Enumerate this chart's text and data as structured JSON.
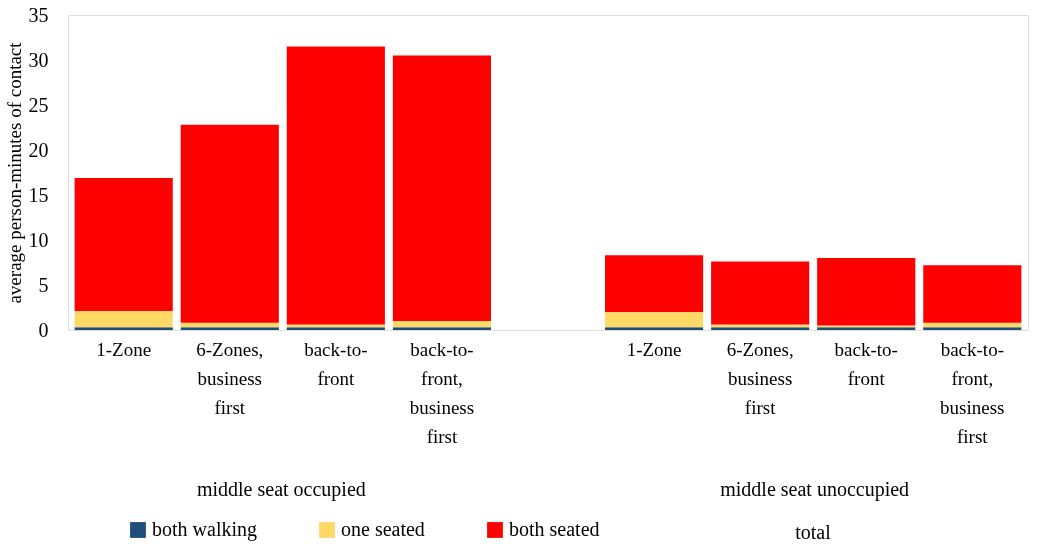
{
  "chart_data": {
    "type": "bar",
    "stacked": true,
    "ylabel": "average person-minutes of contact",
    "categories": [
      "1-Zone",
      "6-Zones, business first",
      "back-to-front",
      "back-to-front, business first",
      null,
      "1-Zone",
      "6-Zones, business first",
      "back-to-front",
      "back-to-front, business first"
    ],
    "series": [
      {
        "name": "both walking",
        "color": "#1f4e79",
        "values": [
          0.3,
          0.3,
          0.3,
          0.3,
          null,
          0.3,
          0.3,
          0.3,
          0.3
        ]
      },
      {
        "name": "one seated",
        "color": "#ffd966",
        "values": [
          1.8,
          0.5,
          0.3,
          0.7,
          null,
          1.7,
          0.3,
          0.2,
          0.5
        ]
      },
      {
        "name": "both seated",
        "color": "#ff0000",
        "values": [
          14.8,
          22.0,
          30.9,
          29.5,
          null,
          6.3,
          7.0,
          7.5,
          6.4
        ]
      }
    ],
    "ylim": [
      0,
      35
    ],
    "yticks": [
      0,
      5,
      10,
      15,
      20,
      25,
      30,
      35
    ],
    "grid": false,
    "legend": "bottom",
    "annotations": [
      "middle seat occupied",
      "middle seat unoccupied",
      "total"
    ]
  }
}
